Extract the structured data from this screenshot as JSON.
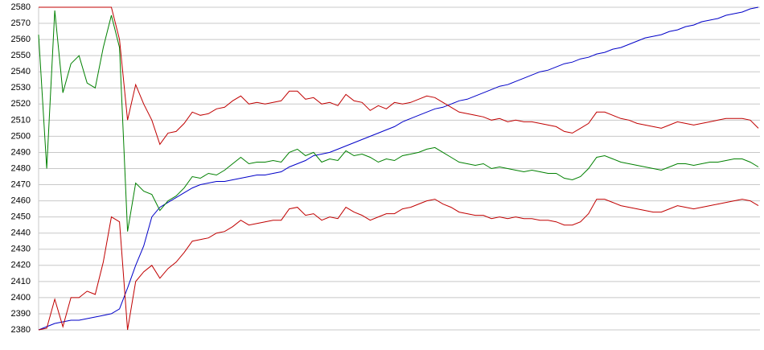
{
  "chart_data": {
    "type": "line",
    "ylim": [
      2380,
      2580
    ],
    "yticks": [
      2380,
      2390,
      2400,
      2410,
      2420,
      2430,
      2440,
      2450,
      2460,
      2470,
      2480,
      2490,
      2500,
      2510,
      2520,
      2530,
      2540,
      2550,
      2560,
      2570,
      2580
    ],
    "grid": true,
    "series": [
      {
        "color": "#0000c8",
        "values": [
          2380,
          2382,
          2384,
          2385,
          2386,
          2386,
          2387,
          2388,
          2389,
          2390,
          2393,
          2406,
          2420,
          2432,
          2450,
          2456,
          2459,
          2462,
          2465,
          2468,
          2470,
          2471,
          2472,
          2472,
          2473,
          2474,
          2475,
          2476,
          2476,
          2477,
          2478,
          2481,
          2483,
          2485,
          2488,
          2489,
          2490,
          2492,
          2494,
          2496,
          2498,
          2500,
          2502,
          2504,
          2506,
          2509,
          2511,
          2513,
          2515,
          2517,
          2518,
          2520,
          2522,
          2523,
          2525,
          2527,
          2529,
          2531,
          2532,
          2534,
          2536,
          2538,
          2540,
          2541,
          2543,
          2545,
          2546,
          2548,
          2549,
          2551,
          2552,
          2554,
          2555,
          2557,
          2559,
          2561,
          2562,
          2563,
          2565,
          2566,
          2568,
          2569,
          2571,
          2572,
          2573,
          2575,
          2576,
          2577,
          2579,
          2580
        ]
      },
      {
        "color": "#008000",
        "values": [
          2563,
          2480,
          2578,
          2527,
          2545,
          2550,
          2533,
          2530,
          2555,
          2575,
          2555,
          2441,
          2471,
          2466,
          2464,
          2454,
          2460,
          2463,
          2468,
          2475,
          2474,
          2477,
          2476,
          2479,
          2483,
          2487,
          2483,
          2484,
          2484,
          2485,
          2484,
          2490,
          2492,
          2488,
          2490,
          2484,
          2486,
          2485,
          2491,
          2488,
          2489,
          2487,
          2484,
          2486,
          2485,
          2488,
          2489,
          2490,
          2492,
          2493,
          2490,
          2487,
          2484,
          2483,
          2482,
          2483,
          2480,
          2481,
          2480,
          2479,
          2478,
          2479,
          2478,
          2477,
          2477,
          2474,
          2473,
          2475,
          2480,
          2487,
          2488,
          2486,
          2484,
          2483,
          2482,
          2481,
          2480,
          2479,
          2481,
          2483,
          2483,
          2482,
          2483,
          2484,
          2484,
          2485,
          2486,
          2486,
          2484,
          2481
        ]
      },
      {
        "color": "#c00000",
        "values": [
          2580,
          2580,
          2580,
          2580,
          2580,
          2580,
          2580,
          2580,
          2580,
          2580,
          2560,
          2510,
          2532,
          2520,
          2510,
          2495,
          2502,
          2503,
          2508,
          2515,
          2513,
          2514,
          2517,
          2518,
          2522,
          2525,
          2520,
          2521,
          2520,
          2521,
          2522,
          2528,
          2528,
          2523,
          2524,
          2520,
          2521,
          2519,
          2526,
          2522,
          2521,
          2516,
          2519,
          2517,
          2521,
          2520,
          2521,
          2523,
          2525,
          2524,
          2521,
          2518,
          2515,
          2514,
          2513,
          2512,
          2510,
          2511,
          2509,
          2510,
          2509,
          2509,
          2508,
          2507,
          2506,
          2503,
          2502,
          2505,
          2508,
          2515,
          2515,
          2513,
          2511,
          2510,
          2508,
          2507,
          2506,
          2505,
          2507,
          2509,
          2508,
          2507,
          2508,
          2509,
          2510,
          2511,
          2511,
          2511,
          2510,
          2505
        ]
      },
      {
        "color": "#c00000",
        "values": [
          2380,
          2381,
          2399,
          2382,
          2400,
          2400,
          2404,
          2402,
          2422,
          2450,
          2447,
          2380,
          2410,
          2416,
          2420,
          2412,
          2418,
          2422,
          2428,
          2435,
          2436,
          2437,
          2440,
          2441,
          2444,
          2448,
          2445,
          2446,
          2447,
          2448,
          2448,
          2455,
          2456,
          2451,
          2452,
          2448,
          2450,
          2449,
          2456,
          2453,
          2451,
          2448,
          2450,
          2452,
          2452,
          2455,
          2456,
          2458,
          2460,
          2461,
          2458,
          2456,
          2453,
          2452,
          2451,
          2451,
          2449,
          2450,
          2449,
          2450,
          2449,
          2449,
          2448,
          2448,
          2447,
          2445,
          2445,
          2447,
          2452,
          2461,
          2461,
          2459,
          2457,
          2456,
          2455,
          2454,
          2453,
          2453,
          2455,
          2457,
          2456,
          2455,
          2456,
          2457,
          2458,
          2459,
          2460,
          2461,
          2460,
          2457
        ]
      }
    ]
  }
}
